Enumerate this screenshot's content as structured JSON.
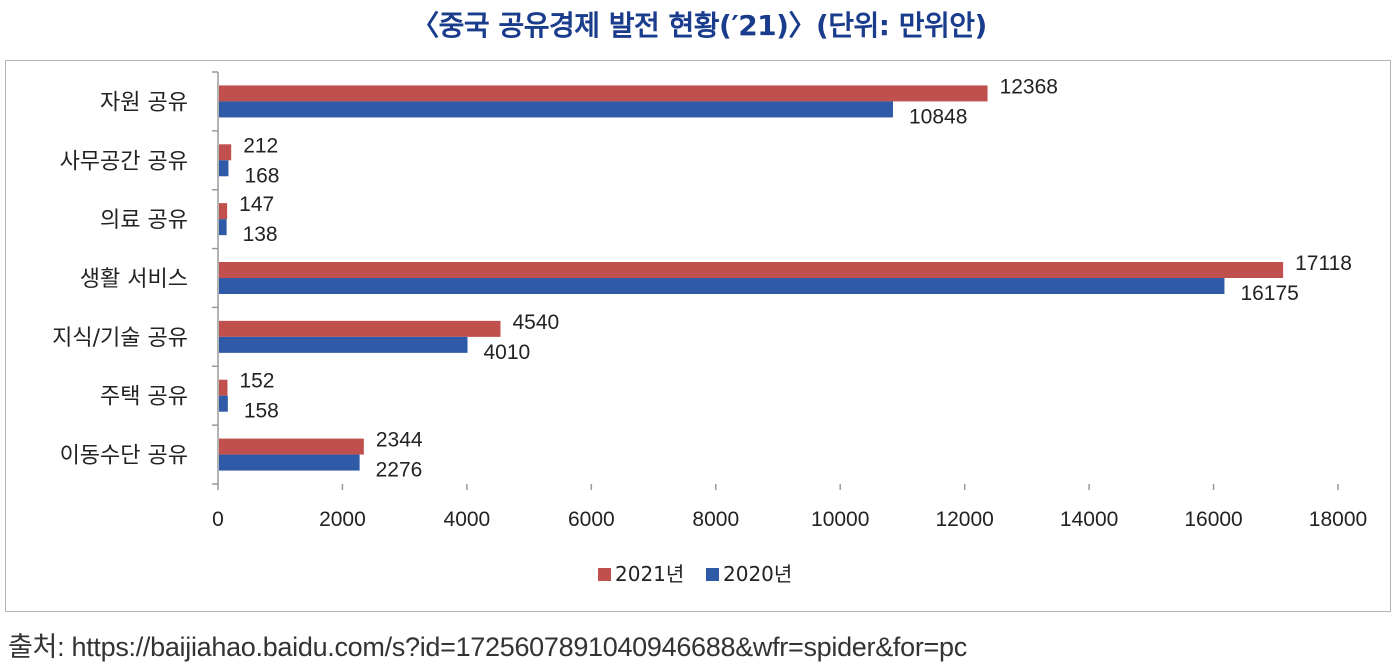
{
  "title": "〈중국 공유경제 발전 현황(′21)〉(단위: 만위안)",
  "source": "출처: https://baijiahao.baidu.com/s?id=1725607891040946688&wfr=spider&for=pc",
  "colors": {
    "series_2021": "#c0504d",
    "series_2020": "#2e5aa8",
    "axis": "#9a9a9a"
  },
  "chart_data": {
    "type": "bar",
    "orientation": "horizontal",
    "categories": [
      "자원 공유",
      "사무공간 공유",
      "의료 공유",
      "생활 서비스",
      "지식/기술 공유",
      "주택 공유",
      "이동수단 공유"
    ],
    "series": [
      {
        "name": "2021년",
        "values": [
          12368,
          212,
          147,
          17118,
          4540,
          152,
          2344
        ]
      },
      {
        "name": "2020년",
        "values": [
          10848,
          168,
          138,
          16175,
          4010,
          158,
          2276
        ]
      }
    ],
    "xlim": [
      0,
      18000
    ],
    "xticks": [
      0,
      2000,
      4000,
      6000,
      8000,
      10000,
      12000,
      14000,
      16000,
      18000
    ],
    "grid": false,
    "legend_position": "bottom"
  }
}
